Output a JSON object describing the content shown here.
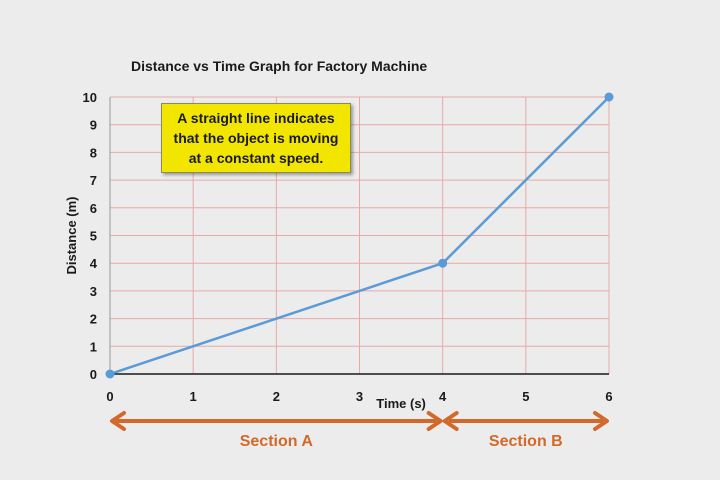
{
  "chart_data": {
    "type": "line",
    "title": "Distance vs Time Graph for Factory Machine",
    "xlabel": "Time (s)",
    "ylabel": "Distance (m)",
    "xlim": [
      0,
      6
    ],
    "ylim": [
      0,
      10
    ],
    "x_ticks": [
      0,
      1,
      2,
      3,
      4,
      5,
      6
    ],
    "y_ticks": [
      0,
      1,
      2,
      3,
      4,
      5,
      6,
      7,
      8,
      9,
      10
    ],
    "grid": true,
    "series": [
      {
        "x": [
          0,
          4,
          6
        ],
        "y": [
          0,
          4,
          10
        ],
        "color": "#5b9bd5",
        "markers": true
      }
    ],
    "annotations": [
      {
        "text": "A straight line indicates that the object is moving at a constant speed.",
        "background": "#f2e600"
      }
    ],
    "sections": [
      {
        "label": "Section A",
        "x_range": [
          0,
          4
        ]
      },
      {
        "label": "Section B",
        "x_range": [
          4,
          6
        ]
      }
    ],
    "colors": {
      "grid": "#e8a8a8",
      "line": "#5b9bd5",
      "section": "#d2692a",
      "axis": "#1a1a1a"
    }
  }
}
